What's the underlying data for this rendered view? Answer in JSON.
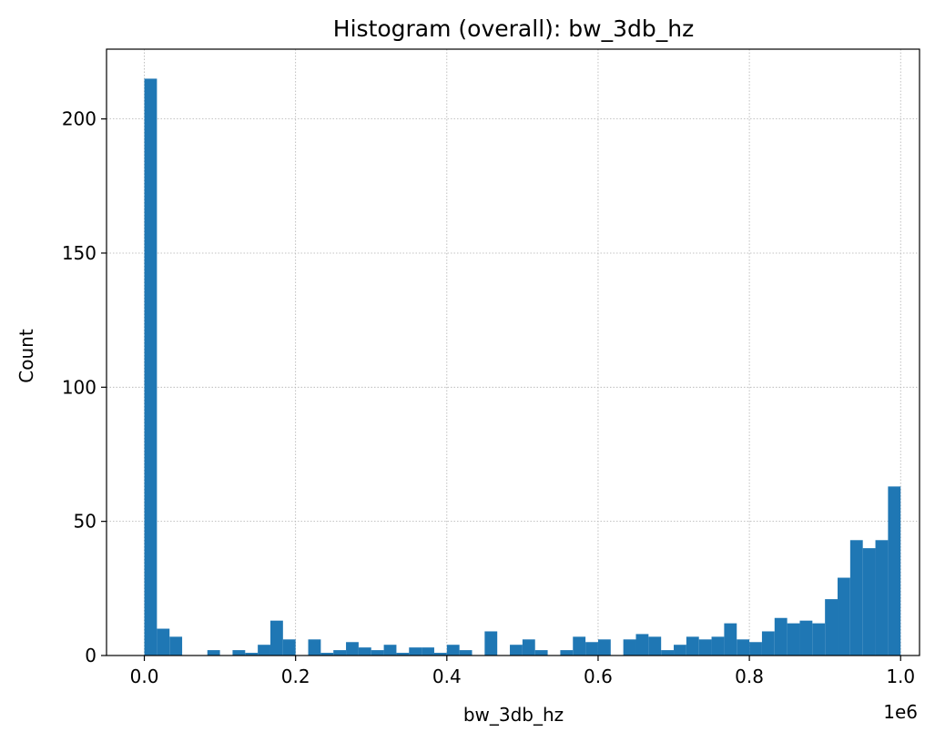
{
  "chart_data": {
    "type": "bar",
    "title": "Histogram (overall): bw_3db_hz",
    "xlabel": "bw_3db_hz",
    "ylabel": "Count",
    "x_offset_label": "1e6",
    "xlim": [
      -0.05,
      1.025
    ],
    "ylim": [
      0,
      226
    ],
    "xticks": [
      0.0,
      0.2,
      0.4,
      0.6,
      0.8,
      1.0
    ],
    "xtick_labels": [
      "0.0",
      "0.2",
      "0.4",
      "0.6",
      "0.8",
      "1.0"
    ],
    "yticks": [
      0,
      50,
      100,
      150,
      200
    ],
    "ytick_labels": [
      "0",
      "50",
      "100",
      "150",
      "200"
    ],
    "grid": true,
    "bar_color": "#1f77b4",
    "bin_range": [
      0.0,
      1.0
    ],
    "bin_count": 60,
    "values": [
      215,
      10,
      7,
      0,
      0,
      2,
      0,
      2,
      1,
      4,
      13,
      6,
      0,
      6,
      1,
      2,
      5,
      3,
      2,
      4,
      1,
      3,
      3,
      1,
      4,
      2,
      0,
      9,
      0,
      4,
      6,
      2,
      0,
      2,
      7,
      5,
      6,
      0,
      6,
      8,
      7,
      2,
      4,
      7,
      6,
      7,
      12,
      6,
      5,
      9,
      14,
      12,
      13,
      12,
      21,
      29,
      43,
      40,
      43,
      63
    ]
  }
}
